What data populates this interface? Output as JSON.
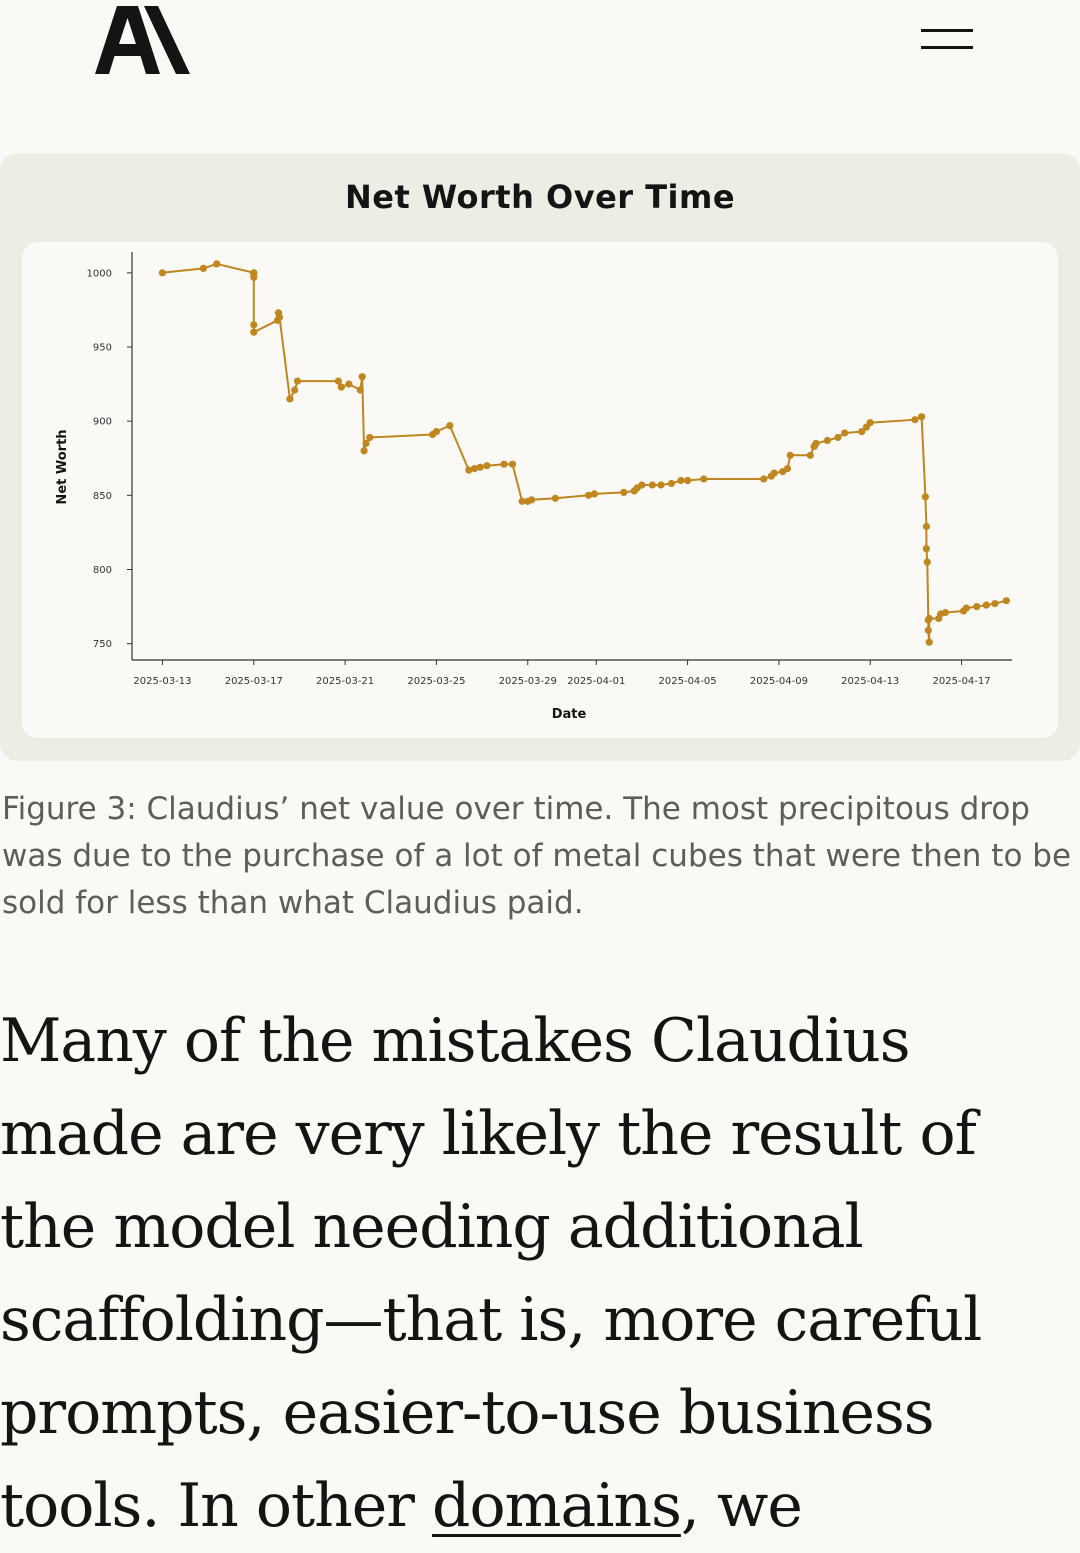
{
  "header": {
    "logo_icon": "anthropic-logo",
    "menu_icon": "hamburger-menu-icon"
  },
  "chart_data": {
    "type": "line",
    "title": "Net Worth Over Time",
    "xlabel": "Date",
    "ylabel": "Net Worth",
    "color": "#c0861f",
    "grid": false,
    "x_ticks": [
      "2025-03-13",
      "2025-03-17",
      "2025-03-21",
      "2025-03-25",
      "2025-03-29",
      "2025-04-01",
      "2025-04-05",
      "2025-04-09",
      "2025-04-13",
      "2025-04-17"
    ],
    "y_ticks": [
      1000,
      950,
      900,
      850,
      800,
      750
    ],
    "xlim": [
      "2025-03-11T16:00",
      "2025-04-19T05:00"
    ],
    "ylim": [
      739,
      1010
    ],
    "points": [
      [
        "2025-03-13T00:00",
        1000
      ],
      [
        "2025-03-14T19:00",
        1003
      ],
      [
        "2025-03-15T09:00",
        1006
      ],
      [
        "2025-03-17T00:00",
        1000
      ],
      [
        "2025-03-17T00:00",
        999
      ],
      [
        "2025-03-17T00:00",
        997
      ],
      [
        "2025-03-17T00:00",
        965
      ],
      [
        "2025-03-17T00:00",
        960
      ],
      [
        "2025-03-18T01:00",
        968
      ],
      [
        "2025-03-18T02:00",
        973
      ],
      [
        "2025-03-18T03:00",
        970
      ],
      [
        "2025-03-18T14:00",
        915
      ],
      [
        "2025-03-18T19:00",
        921
      ],
      [
        "2025-03-18T22:00",
        927
      ],
      [
        "2025-03-20T17:00",
        927
      ],
      [
        "2025-03-20T20:00",
        923
      ],
      [
        "2025-03-21T04:00",
        925
      ],
      [
        "2025-03-21T16:00",
        921
      ],
      [
        "2025-03-21T18:00",
        930
      ],
      [
        "2025-03-21T20:00",
        880
      ],
      [
        "2025-03-21T22:00",
        885
      ],
      [
        "2025-03-22T02:00",
        889
      ],
      [
        "2025-03-24T20:00",
        891
      ],
      [
        "2025-03-25T00:00",
        893
      ],
      [
        "2025-03-25T14:00",
        897
      ],
      [
        "2025-03-26T10:00",
        867
      ],
      [
        "2025-03-26T16:00",
        868
      ],
      [
        "2025-03-26T22:00",
        869
      ],
      [
        "2025-03-27T05:00",
        870
      ],
      [
        "2025-03-27T23:00",
        871
      ],
      [
        "2025-03-28T08:00",
        871
      ],
      [
        "2025-03-28T18:00",
        846
      ],
      [
        "2025-03-29T00:00",
        846
      ],
      [
        "2025-03-29T04:00",
        847
      ],
      [
        "2025-03-30T05:00",
        848
      ],
      [
        "2025-03-31T16:00",
        850
      ],
      [
        "2025-03-31T22:00",
        851
      ],
      [
        "2025-04-02T05:00",
        852
      ],
      [
        "2025-04-02T16:00",
        853
      ],
      [
        "2025-04-02T19:00",
        855
      ],
      [
        "2025-04-03T00:00",
        857
      ],
      [
        "2025-04-03T11:00",
        857
      ],
      [
        "2025-04-03T20:00",
        857
      ],
      [
        "2025-04-04T07:00",
        858
      ],
      [
        "2025-04-04T17:00",
        860
      ],
      [
        "2025-04-05T00:00",
        860
      ],
      [
        "2025-04-05T17:00",
        861
      ],
      [
        "2025-04-08T08:00",
        861
      ],
      [
        "2025-04-08T16:00",
        863
      ],
      [
        "2025-04-08T19:00",
        865
      ],
      [
        "2025-04-09T04:00",
        866
      ],
      [
        "2025-04-09T09:00",
        868
      ],
      [
        "2025-04-09T12:00",
        877
      ],
      [
        "2025-04-10T09:00",
        877
      ],
      [
        "2025-04-10T13:00",
        883
      ],
      [
        "2025-04-10T15:00",
        885
      ],
      [
        "2025-04-11T03:00",
        887
      ],
      [
        "2025-04-11T14:00",
        889
      ],
      [
        "2025-04-11T21:00",
        892
      ],
      [
        "2025-04-12T15:00",
        893
      ],
      [
        "2025-04-12T20:00",
        896
      ],
      [
        "2025-04-13T00:00",
        899
      ],
      [
        "2025-04-14T23:00",
        901
      ],
      [
        "2025-04-15T06:00",
        903
      ],
      [
        "2025-04-15T10:00",
        849
      ],
      [
        "2025-04-15T11:00",
        829
      ],
      [
        "2025-04-15T11:00",
        814
      ],
      [
        "2025-04-15T12:00",
        805
      ],
      [
        "2025-04-15T13:00",
        766
      ],
      [
        "2025-04-15T13:00",
        759
      ],
      [
        "2025-04-15T14:00",
        751
      ],
      [
        "2025-04-15T14:00",
        767
      ],
      [
        "2025-04-16T00:00",
        767
      ],
      [
        "2025-04-16T02:00",
        770
      ],
      [
        "2025-04-16T07:00",
        771
      ],
      [
        "2025-04-17T02:00",
        772
      ],
      [
        "2025-04-17T05:00",
        774
      ],
      [
        "2025-04-17T16:00",
        775
      ],
      [
        "2025-04-18T02:00",
        776
      ],
      [
        "2025-04-18T11:00",
        777
      ],
      [
        "2025-04-18T23:00",
        779
      ]
    ]
  },
  "caption": "Figure 3: Claudius’ net value over time. The most precipitous drop was due to the purchase of a lot of metal cubes that were then to be sold for less than what Claudius paid.",
  "body": {
    "text_before_link": "Many of the mistakes Claudius made are very likely the result of the model needing additional scaffolding—that is, more careful prompts, easier-to-use business tools. In other ",
    "link_text": "domains",
    "text_after_link": ", we"
  }
}
